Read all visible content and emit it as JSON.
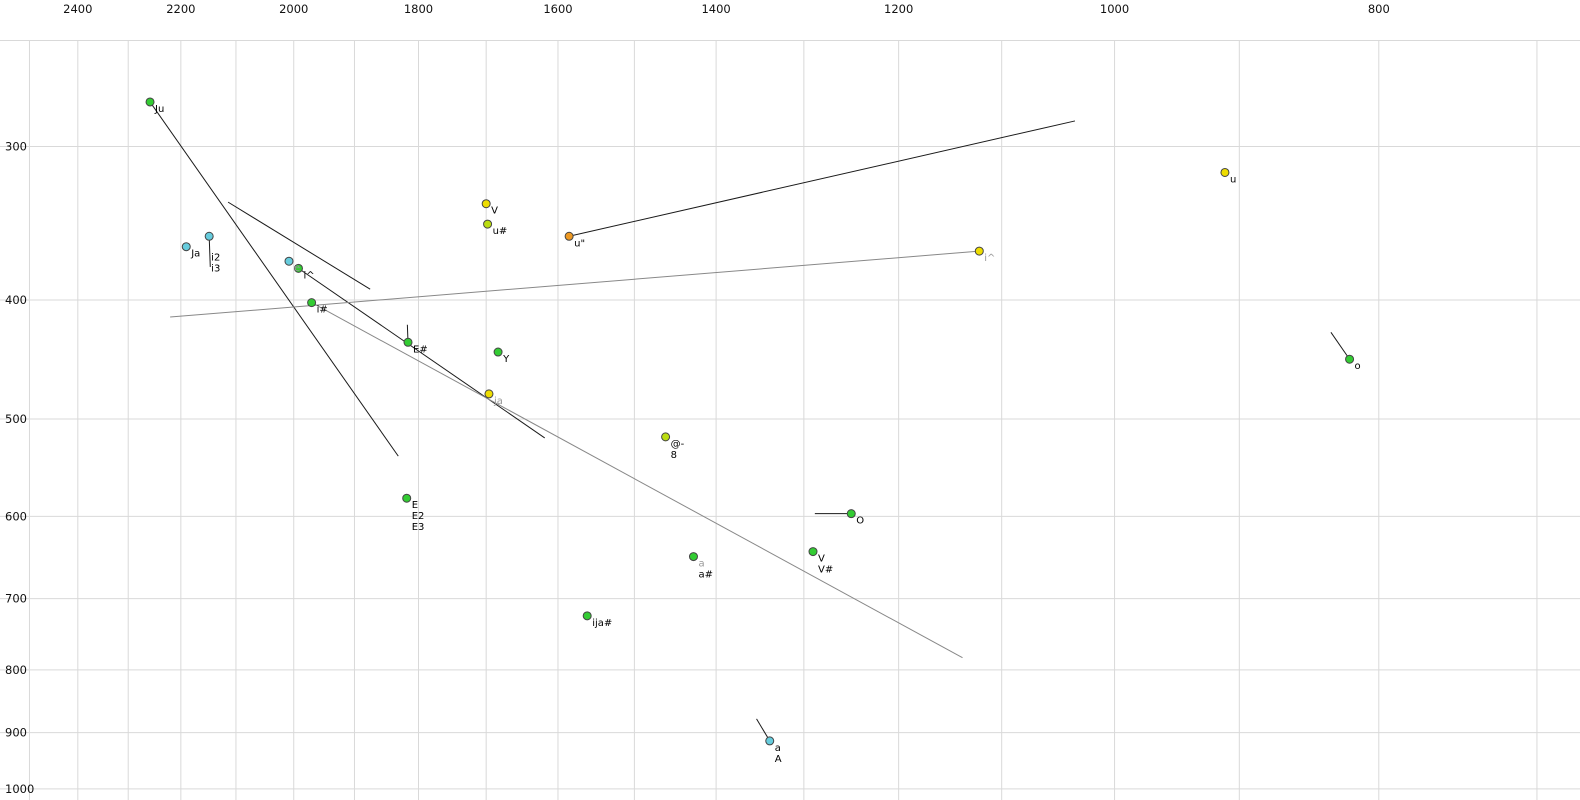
{
  "chart_data": {
    "type": "scatter",
    "title": "",
    "xlabel": "",
    "ylabel": "",
    "description": "Vowel formant plot, F2 (Hz) on reversed log x-axis at top, F1 (Hz) on log y-axis increasing downward",
    "x_axis": {
      "scale": "log",
      "reversed": true,
      "left_value": 2563,
      "right_value": 675,
      "tick_labels": [
        2400,
        2200,
        2000,
        1800,
        1600,
        1400,
        1200,
        1000,
        800
      ],
      "minor_ticks": [
        2500,
        2300,
        2100,
        1900,
        1700,
        1500,
        1300,
        1100,
        900,
        700
      ]
    },
    "y_axis": {
      "scale": "log",
      "top_value": 228,
      "bottom_value": 1021,
      "plot_top_value": 246,
      "tick_labels": [
        300,
        400,
        500,
        600,
        700,
        800,
        900,
        1000
      ]
    },
    "points": [
      {
        "name": "Ju",
        "f2": 2258,
        "f1": 276,
        "color": "green",
        "labels": [
          {
            "text": "Ju",
            "muted": false
          }
        ]
      },
      {
        "name": "u",
        "f2": 911,
        "f1": 315,
        "color": "yellow",
        "labels": [
          {
            "text": "u",
            "muted": false
          }
        ]
      },
      {
        "name": "V-high",
        "f2": 1700,
        "f1": 334,
        "color": "yellow",
        "labels": [
          {
            "text": "V",
            "muted": false
          }
        ]
      },
      {
        "name": "u-hash",
        "f2": 1698,
        "f1": 347,
        "color": "yellowgreen",
        "labels": [
          {
            "text": "u#",
            "muted": false
          }
        ]
      },
      {
        "name": "u-quote",
        "f2": 1585,
        "f1": 355,
        "color": "orange",
        "labels": [
          {
            "text": "u\"",
            "muted": false
          }
        ]
      },
      {
        "name": "Ja",
        "f2": 2190,
        "f1": 362,
        "color": "cyan",
        "labels": [
          {
            "text": "Ja",
            "muted": false
          }
        ]
      },
      {
        "name": "i2-i3",
        "f2": 2148,
        "f1": 355,
        "color": "cyan",
        "labels": [
          {
            "text": "i2",
            "muted": false
          },
          {
            "text": "i3",
            "muted": false
          }
        ],
        "label_offset": [
          2,
          24
        ]
      },
      {
        "name": "e",
        "f2": 2008,
        "f1": 372,
        "color": "cyan",
        "labels": [
          {
            "text": "e",
            "muted": true
          }
        ]
      },
      {
        "name": "i-caret",
        "f2": 1992,
        "f1": 377,
        "color": "green",
        "labels": [
          {
            "text": "i^",
            "muted": false
          }
        ]
      },
      {
        "name": "i-hash",
        "f2": 1970,
        "f1": 402,
        "color": "green",
        "labels": [
          {
            "text": "i#",
            "muted": false
          }
        ]
      },
      {
        "name": "E-hash",
        "f2": 1816,
        "f1": 433,
        "color": "green",
        "labels": [
          {
            "text": "E#",
            "muted": false
          }
        ]
      },
      {
        "name": "Y",
        "f2": 1683,
        "f1": 441,
        "color": "green",
        "labels": [
          {
            "text": "Y",
            "muted": false
          }
        ]
      },
      {
        "name": "ja",
        "f2": 1696,
        "f1": 477,
        "color": "yellow",
        "labels": [
          {
            "text": "ja",
            "muted": true
          }
        ]
      },
      {
        "name": "schwa-8",
        "f2": 1461,
        "f1": 517,
        "color": "yellowgreen",
        "labels": [
          {
            "text": "@-",
            "muted": false
          },
          {
            "text": "8",
            "muted": false
          }
        ]
      },
      {
        "name": "E-E2-E3",
        "f2": 1818,
        "f1": 580,
        "color": "green",
        "labels": [
          {
            "text": "E",
            "muted": false
          },
          {
            "text": "E2",
            "muted": false
          },
          {
            "text": "E3",
            "muted": false
          }
        ]
      },
      {
        "name": "O",
        "f2": 1249,
        "f1": 597,
        "color": "green",
        "labels": [
          {
            "text": "O",
            "muted": false
          }
        ]
      },
      {
        "name": "a-a-hash",
        "f2": 1427,
        "f1": 647,
        "color": "green",
        "labels": [
          {
            "text": "a",
            "muted": true
          },
          {
            "text": "a#",
            "muted": false
          }
        ]
      },
      {
        "name": "V-V-hash",
        "f2": 1290,
        "f1": 641,
        "color": "green",
        "labels": [
          {
            "text": "V",
            "muted": false
          },
          {
            "text": "V#",
            "muted": false
          }
        ]
      },
      {
        "name": "ija-hash",
        "f2": 1561,
        "f1": 723,
        "color": "green",
        "labels": [
          {
            "text": "ija#",
            "muted": false
          }
        ]
      },
      {
        "name": "o",
        "f2": 820,
        "f1": 447,
        "color": "green",
        "labels": [
          {
            "text": "o",
            "muted": false
          }
        ]
      },
      {
        "name": "i-caret-back",
        "f2": 1121,
        "f1": 365,
        "color": "yellow",
        "labels": [
          {
            "text": "i^",
            "muted": true
          }
        ]
      },
      {
        "name": "a-A",
        "f2": 1338,
        "f1": 914,
        "color": "cyan",
        "labels": [
          {
            "text": "a",
            "muted": false
          },
          {
            "text": "A",
            "muted": false
          }
        ]
      }
    ],
    "segments": [
      {
        "from": [
          2258,
          276
        ],
        "to": [
          1831,
          536
        ],
        "shade": "black"
      },
      {
        "from": [
          2114,
          333
        ],
        "to": [
          1875,
          392
        ],
        "shade": "black"
      },
      {
        "from": [
          1992,
          377
        ],
        "to": [
          1618,
          518
        ],
        "shade": "black"
      },
      {
        "from": [
          2220,
          413
        ],
        "to": [
          1121,
          365
        ],
        "shade": "gray"
      },
      {
        "from": [
          1585,
          355
        ],
        "to": [
          1034,
          286
        ],
        "shade": "black"
      },
      {
        "from": [
          1970,
          402
        ],
        "to": [
          1137,
          782
        ],
        "shade": "gray"
      },
      {
        "from": [
          1817,
          419
        ],
        "to": [
          1816,
          433
        ],
        "shade": "black"
      },
      {
        "from": [
          2148,
          355
        ],
        "to": [
          2146,
          376
        ],
        "shade": "black"
      },
      {
        "from": [
          1288,
          597
        ],
        "to": [
          1249,
          597
        ],
        "shade": "black"
      },
      {
        "from": [
          833,
          425
        ],
        "to": [
          820,
          447
        ],
        "shade": "black"
      },
      {
        "from": [
          1353,
          877
        ],
        "to": [
          1338,
          914
        ],
        "shade": "black"
      }
    ],
    "colors": {
      "green": "#33cc33",
      "cyan": "#66ccdd",
      "yellow": "#eedd00",
      "orange": "#ee9922",
      "yellowgreen": "#bbdd11",
      "grid": "#d9d9d9",
      "line_black": "#1a1a1a",
      "line_gray": "#888888",
      "point_stroke": "#444444",
      "label": "#000000",
      "label_muted": "#999999",
      "axis_label": "#111111",
      "background": "#ffffff"
    },
    "layout_hints": {
      "grid": "on",
      "legend": "none",
      "x_labels_position": "top",
      "y_labels_position": "left"
    }
  }
}
